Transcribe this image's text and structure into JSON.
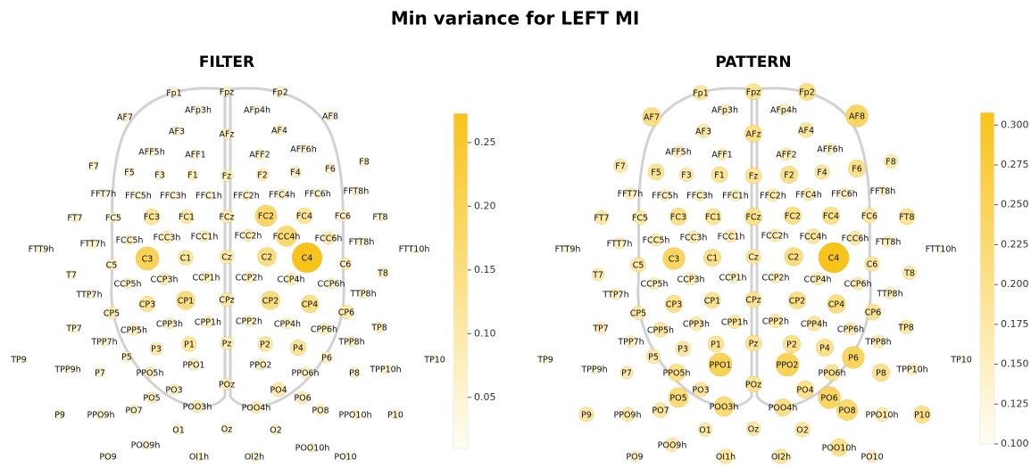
{
  "title": "Min variance for LEFT MI",
  "electrodes": [
    "Fp1",
    "Fpz",
    "Fp2",
    "AF7",
    "AFp3h",
    "AFp4h",
    "AF8",
    "AF3",
    "AFz",
    "AF4",
    "AFF5h",
    "AFF1",
    "AFF2",
    "AFF6h",
    "F7",
    "F5",
    "F3",
    "F1",
    "Fz",
    "F2",
    "F4",
    "F6",
    "F8",
    "FFT7h",
    "FFC5h",
    "FFC3h",
    "FFC1h",
    "FFC2h",
    "FFC4h",
    "FFC6h",
    "FFT8h",
    "FT7",
    "FC5",
    "FC3",
    "FC1",
    "FCz",
    "FC2",
    "FC4",
    "FC6",
    "FT8",
    "FTT9h",
    "FTT7h",
    "FCC5h",
    "FCC3h",
    "FCC1h",
    "FCC2h",
    "FCC4h",
    "FCC6h",
    "FTT8h",
    "FTT10h",
    "C5",
    "C3",
    "C1",
    "Cz",
    "C2",
    "C4",
    "C6",
    "T7",
    "T8",
    "CCP5h",
    "CCP3h",
    "CCP1h",
    "CCP2h",
    "CCP4h",
    "CCP6h",
    "TTP7h",
    "TTP8h",
    "CP5",
    "CP3",
    "CP1",
    "CPz",
    "CP2",
    "CP4",
    "CP6",
    "TP7",
    "CPP5h",
    "CPP3h",
    "CPP1h",
    "CPP2h",
    "CPP4h",
    "CPP6h",
    "TP8",
    "TPP7h",
    "P3",
    "P1",
    "Pz",
    "P2",
    "P4",
    "TPP8h",
    "TP9",
    "P5",
    "PPO1",
    "PPO2",
    "P6",
    "TP10",
    "TPP9h",
    "P7",
    "PPO5h",
    "PPO6h",
    "P8",
    "TPP10h",
    "PO3",
    "POz",
    "PO4",
    "PO5",
    "PO6",
    "POO3h",
    "POO4h",
    "P9",
    "PPO9h",
    "PO7",
    "PO8",
    "PPO10h",
    "P10",
    "O1",
    "Oz",
    "O2",
    "POO9h",
    "POO10h",
    "PO9",
    "OI1h",
    "OI2h",
    "PO10"
  ],
  "chart_data": [
    {
      "type": "topomap",
      "title": "FILTER",
      "colormap": [
        "#fffdf3",
        "#f8c31a"
      ],
      "clim": [
        0.01,
        0.273
      ],
      "cticks": [
        0.05,
        {
          "value": 0.1,
          "label": "0.10"
        },
        0.15,
        {
          "value": 0.2,
          "label": "0.20"
        },
        0.25
      ],
      "values": [
        0.06,
        0.06,
        0.06,
        0.05,
        0.04,
        0.04,
        0.05,
        0.05,
        0.07,
        0.06,
        0.05,
        0.05,
        0.06,
        0.05,
        0.05,
        0.05,
        0.06,
        0.07,
        0.08,
        0.08,
        0.07,
        0.06,
        0.05,
        0.04,
        0.05,
        0.05,
        0.05,
        0.06,
        0.06,
        0.05,
        0.05,
        0.05,
        0.06,
        0.12,
        0.1,
        0.09,
        0.18,
        0.12,
        0.07,
        0.05,
        0.04,
        0.05,
        0.06,
        0.08,
        0.07,
        0.08,
        0.17,
        0.09,
        0.05,
        0.04,
        0.07,
        0.2,
        0.11,
        0.1,
        0.15,
        0.27,
        0.08,
        0.05,
        0.06,
        0.06,
        0.08,
        0.07,
        0.07,
        0.08,
        0.06,
        0.05,
        0.05,
        0.08,
        0.12,
        0.15,
        0.1,
        0.15,
        0.14,
        0.1,
        0.05,
        0.07,
        0.07,
        0.07,
        0.07,
        0.07,
        0.07,
        0.06,
        0.05,
        0.09,
        0.11,
        0.09,
        0.11,
        0.12,
        0.06,
        0.03,
        0.06,
        0.07,
        0.07,
        0.07,
        0.03,
        0.04,
        0.05,
        0.07,
        0.07,
        0.06,
        0.05,
        0.07,
        0.08,
        0.1,
        0.07,
        0.08,
        0.08,
        0.08,
        0.05,
        0.05,
        0.06,
        0.07,
        0.05,
        0.05,
        0.06,
        0.06,
        0.06,
        0.05,
        0.05,
        0.04,
        0.05,
        0.05,
        0.04
      ]
    },
    {
      "type": "topomap",
      "title": "PATTERN",
      "colormap": [
        "#fffdf3",
        "#f8c31a"
      ],
      "clim": [
        0.1,
        0.308
      ],
      "cticks": [
        {
          "value": 0.1,
          "label": "0.100"
        },
        0.125,
        {
          "value": 0.15,
          "label": "0.150"
        },
        0.175,
        {
          "value": 0.2,
          "label": "0.200"
        },
        0.225,
        {
          "value": 0.25,
          "label": "0.250"
        },
        0.275,
        {
          "value": 0.3,
          "label": "0.300"
        }
      ],
      "values": [
        0.18,
        0.19,
        0.2,
        0.21,
        0.15,
        0.15,
        0.24,
        0.17,
        0.2,
        0.18,
        0.15,
        0.15,
        0.16,
        0.15,
        0.17,
        0.19,
        0.17,
        0.19,
        0.19,
        0.2,
        0.18,
        0.2,
        0.17,
        0.15,
        0.15,
        0.15,
        0.15,
        0.16,
        0.16,
        0.15,
        0.14,
        0.17,
        0.17,
        0.2,
        0.19,
        0.2,
        0.2,
        0.2,
        0.18,
        0.19,
        0.12,
        0.15,
        0.16,
        0.16,
        0.16,
        0.16,
        0.18,
        0.17,
        0.15,
        0.12,
        0.18,
        0.24,
        0.2,
        0.18,
        0.21,
        0.31,
        0.18,
        0.16,
        0.17,
        0.15,
        0.16,
        0.15,
        0.15,
        0.16,
        0.16,
        0.15,
        0.15,
        0.17,
        0.2,
        0.19,
        0.19,
        0.2,
        0.21,
        0.19,
        0.15,
        0.18,
        0.17,
        0.17,
        0.17,
        0.18,
        0.16,
        0.17,
        0.15,
        0.18,
        0.19,
        0.19,
        0.2,
        0.2,
        0.16,
        0.12,
        0.17,
        0.25,
        0.25,
        0.24,
        0.12,
        0.13,
        0.16,
        0.2,
        0.19,
        0.2,
        0.15,
        0.18,
        0.19,
        0.2,
        0.22,
        0.24,
        0.22,
        0.2,
        0.18,
        0.17,
        0.18,
        0.23,
        0.17,
        0.2,
        0.17,
        0.17,
        0.18,
        0.17,
        0.2,
        0.14,
        0.18,
        0.18,
        0.15
      ]
    }
  ]
}
